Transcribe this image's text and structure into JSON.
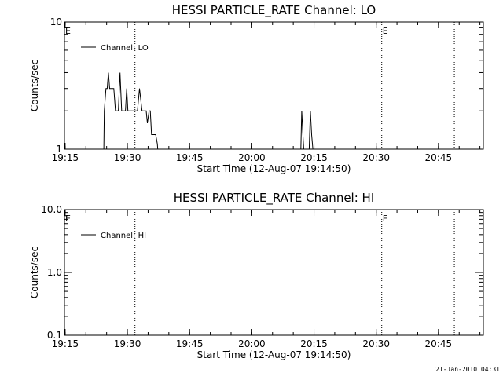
{
  "chart_data": [
    {
      "type": "line",
      "title": "HESSI PARTICLE_RATE Channel: LO",
      "xlabel": "Start Time (12-Aug-07 19:14:50)",
      "ylabel": "Counts/sec",
      "xrange_minutes": [
        0,
        101
      ],
      "xtick_labels": [
        "19:15",
        "19:30",
        "19:45",
        "20:00",
        "20:15",
        "20:30",
        "20:45"
      ],
      "xtick_minutes": [
        0.17,
        15.17,
        30.17,
        45.17,
        60.17,
        75.17,
        90.17
      ],
      "yscale": "log",
      "ylim": [
        1,
        10
      ],
      "ytick_labels": [
        "1",
        "10"
      ],
      "ytick_values": [
        1,
        10
      ],
      "legend": {
        "entries": [
          "Channel: LO"
        ],
        "position": "top-left"
      },
      "event_lines_minutes": [
        17,
        76.5,
        94
      ],
      "event_flags": [
        {
          "label": "E",
          "minute": 0
        },
        {
          "label": "E",
          "minute": 76.5
        }
      ],
      "series": [
        {
          "name": "Channel: LO",
          "x": [
            9.5,
            9.6,
            10.0,
            10.3,
            10.6,
            10.9,
            11.3,
            11.9,
            12.3,
            12.6,
            13.0,
            13.4,
            13.8,
            14.3,
            14.7,
            15.0,
            15.3,
            15.7,
            16.0,
            16.4,
            16.8,
            17.2,
            17.6,
            18.1,
            18.7,
            19.3,
            19.7,
            20.0,
            20.4,
            20.7,
            21.0,
            21.5,
            22.0,
            22.4,
            22.5,
            57.0,
            57.2,
            57.5,
            57.7,
            59.0,
            59.3,
            59.6,
            59.9
          ],
          "y": [
            1,
            2,
            3,
            3,
            4,
            3,
            3,
            3,
            2,
            2,
            2,
            4,
            2,
            2,
            2,
            3,
            2,
            2,
            2,
            2,
            2,
            2,
            2,
            3,
            2,
            2,
            2,
            1.6,
            2,
            2,
            1.3,
            1.3,
            1.3,
            1.1,
            1,
            1,
            2,
            1.3,
            1,
            1,
            2,
            1.3,
            1
          ]
        }
      ]
    },
    {
      "type": "line",
      "title": "HESSI PARTICLE_RATE Channel: HI",
      "xlabel": "Start Time (12-Aug-07 19:14:50)",
      "ylabel": "Counts/sec",
      "xrange_minutes": [
        0,
        101
      ],
      "xtick_labels": [
        "19:15",
        "19:30",
        "19:45",
        "20:00",
        "20:15",
        "20:30",
        "20:45"
      ],
      "xtick_minutes": [
        0.17,
        15.17,
        30.17,
        45.17,
        60.17,
        75.17,
        90.17
      ],
      "yscale": "log",
      "ylim": [
        0.1,
        10
      ],
      "ytick_labels": [
        "0.1",
        "1.0",
        "10.0"
      ],
      "ytick_values": [
        0.1,
        1,
        10
      ],
      "legend": {
        "entries": [
          "Channel: HI"
        ],
        "position": "top-left"
      },
      "event_lines_minutes": [
        17,
        76.5,
        94
      ],
      "event_flags": [
        {
          "label": "E",
          "minute": 0
        },
        {
          "label": "E",
          "minute": 76.5
        }
      ],
      "series": [
        {
          "name": "Channel: HI",
          "x": [],
          "y": []
        }
      ]
    }
  ],
  "footer": {
    "timestamp": "21-Jan-2010 04:31"
  }
}
